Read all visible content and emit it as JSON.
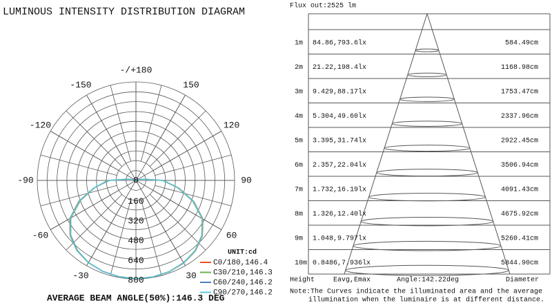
{
  "chart_data": {
    "type": "polar",
    "title": "LUMINOUS INTENSITY DISTRIBUTION DIAGRAM",
    "x": [
      -120,
      -110,
      -100,
      -90,
      -80,
      -70,
      -60,
      -50,
      -40,
      -30,
      -20,
      -10,
      0,
      10,
      20,
      30,
      40,
      50,
      60,
      70,
      80,
      90,
      100,
      110,
      120
    ],
    "series": [
      {
        "name": "C0/180,146.4",
        "color": "#e8502a",
        "values": [
          0,
          10,
          58,
          215,
          345,
          492,
          620,
          697,
          745,
          772,
          787,
          795,
          800,
          797,
          790,
          776,
          750,
          703,
          628,
          500,
          352,
          222,
          62,
          12,
          0
        ]
      },
      {
        "name": "C30/210,146.3",
        "color": "#6ab04c",
        "values": [
          0,
          12,
          65,
          230,
          340,
          480,
          610,
          690,
          740,
          770,
          786,
          794,
          798,
          795,
          788,
          772,
          745,
          697,
          620,
          490,
          345,
          215,
          58,
          10,
          0
        ]
      },
      {
        "name": "C60/240,146.2",
        "color": "#4a7fc0",
        "values": [
          0,
          10,
          60,
          220,
          342,
          485,
          615,
          693,
          742,
          771,
          786,
          794,
          799,
          796,
          789,
          774,
          748,
          700,
          624,
          495,
          348,
          218,
          60,
          11,
          0
        ]
      },
      {
        "name": "C90/270,146.2",
        "color": "#5bc8d8",
        "values": [
          0,
          11,
          62,
          225,
          344,
          488,
          618,
          695,
          744,
          772,
          787,
          795,
          800,
          796,
          789,
          775,
          748,
          701,
          625,
          497,
          350,
          220,
          61,
          11,
          0
        ]
      }
    ],
    "rlim": [
      0,
      800
    ],
    "rticks": [
      0,
      160,
      320,
      480,
      640,
      800
    ],
    "angle_ticks": [
      {
        "value": 180,
        "label": "-/+180"
      },
      -150,
      150,
      -120,
      120,
      -90,
      90,
      -60,
      60,
      -30,
      30
    ],
    "unit": "UNIT:cd",
    "footer": "AVERAGE BEAM ANGLE(50%):146.3 DEG"
  },
  "table": {
    "flux": "Flux out:2525 lm",
    "rows": [
      [
        "1m",
        "84.86,793.6lx",
        "584.49cm"
      ],
      [
        "2m",
        "21.22,198.4lx",
        "1168.98cm"
      ],
      [
        "3m",
        "9.429,88.17lx",
        "1753.47cm"
      ],
      [
        "4m",
        "5.304,49.60lx",
        "2337.96cm"
      ],
      [
        "5m",
        "3.395,31.74lx",
        "2922.45cm"
      ],
      [
        "6m",
        "2.357,22.04lx",
        "3506.94cm"
      ],
      [
        "7m",
        "1.732,16.19lx",
        "4091.43cm"
      ],
      [
        "8m",
        "1.326,12.40lx",
        "4675.92cm"
      ],
      [
        "9m",
        "1.048,9.797lx",
        "5260.41cm"
      ],
      [
        "10m",
        "0.8486,7.936lx",
        "5844.90cm"
      ]
    ],
    "footer": [
      "Height",
      "Eavg,Emax",
      "Angle:142.22deg",
      "Diameter"
    ],
    "note": [
      "Note:The Curves indicate the illuminated area and the average",
      "illumination when the luminaire is at different distance."
    ]
  }
}
